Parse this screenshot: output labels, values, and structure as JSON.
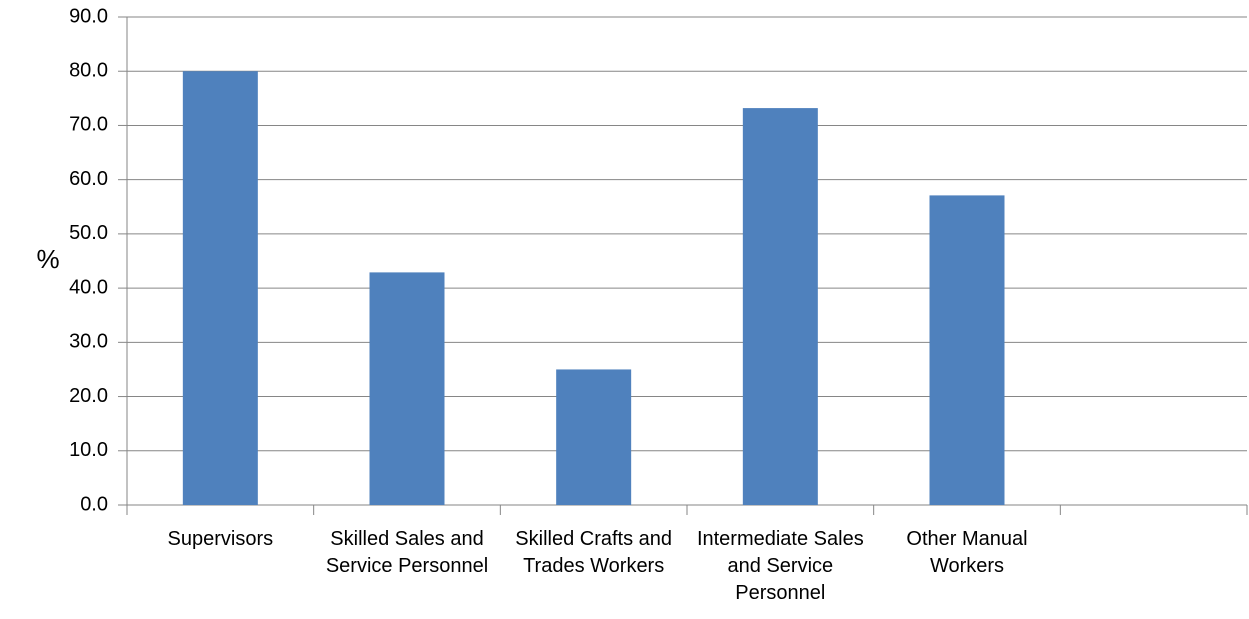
{
  "chart_data": {
    "type": "bar",
    "y_label": "%",
    "categories": [
      "Supervisors",
      "Skilled Sales and Service Personnel",
      "Skilled Crafts and Trades Workers",
      "Intermediate Sales and Service Personnel",
      "Other Manual Workers",
      null
    ],
    "values": [
      80.0,
      42.9,
      25.0,
      73.2,
      57.1,
      null
    ],
    "color": "#4f81bd",
    "ylim": [
      0,
      90
    ],
    "yticks": [
      {
        "value": 0,
        "label": "0.0"
      },
      {
        "value": 10,
        "label": "10.0"
      },
      {
        "value": 20,
        "label": "20.0"
      },
      {
        "value": 30,
        "label": "30.0"
      },
      {
        "value": 40,
        "label": "40.0"
      },
      {
        "value": 50,
        "label": "50.0"
      },
      {
        "value": 60,
        "label": "60.0"
      },
      {
        "value": 70,
        "label": "70.0"
      },
      {
        "value": 80,
        "label": "80.0"
      },
      {
        "value": 90,
        "label": "90.0"
      }
    ],
    "grid": true
  }
}
